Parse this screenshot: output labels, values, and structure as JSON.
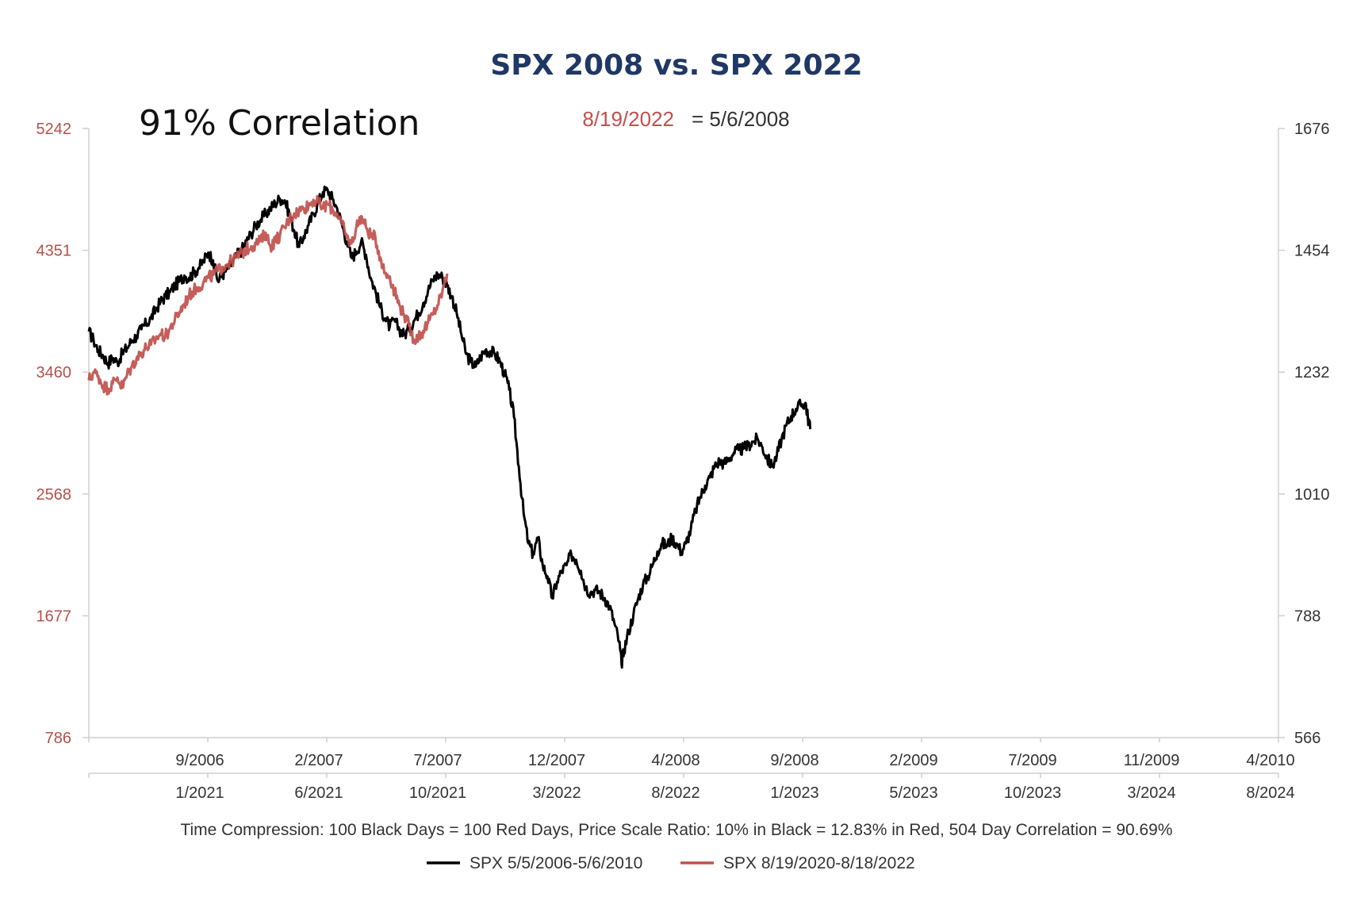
{
  "chart_data": {
    "type": "line",
    "title": "SPX 2008 vs. SPX 2022",
    "annotation_corr": "91% Correlation",
    "annotation_red_date": "8/19/2022",
    "annotation_black_date": "= 5/6/2008",
    "footnote": "Time Compression: 100 Black Days = 100 Red Days,  Price Scale Ratio: 10% in Black = 12.83% in Red, 504 Day Correlation = 90.69%",
    "left_axis": {
      "ticks": [
        "5242",
        "4351",
        "3460",
        "2568",
        "1677",
        "786"
      ],
      "ylim": [
        786,
        5242
      ],
      "color": "#b5504a"
    },
    "right_axis": {
      "ticks": [
        "1676",
        "1454",
        "1232",
        "1010",
        "788",
        "566"
      ],
      "ylim": [
        566,
        1676
      ]
    },
    "x_black": {
      "ticks": [
        "9/2006",
        "2/2007",
        "7/2007",
        "12/2007",
        "4/2008",
        "9/2008",
        "2/2009",
        "7/2009",
        "11/2009",
        "4/2010"
      ],
      "range": [
        "5/5/2006",
        "5/6/2010"
      ]
    },
    "x_red": {
      "ticks": [
        "1/2021",
        "6/2021",
        "10/2021",
        "3/2022",
        "8/2022",
        "1/2023",
        "5/2023",
        "10/2023",
        "3/2024",
        "8/2024"
      ],
      "tick_colors": [
        "#c0504d",
        "#c0504d",
        "#c0504d",
        "#c0504d",
        "#c0504d",
        "#333333",
        "#333333",
        "#333333",
        "#333333",
        "#333333"
      ]
    },
    "series": [
      {
        "name": "SPX 5/5/2006-5/6/2010",
        "color": "#000000",
        "axis": "right",
        "points": [
          [
            0.0,
            1306
          ],
          [
            0.01,
            1290
          ],
          [
            0.02,
            1272
          ],
          [
            0.03,
            1262
          ],
          [
            0.04,
            1248
          ],
          [
            0.05,
            1258
          ],
          [
            0.06,
            1250
          ],
          [
            0.07,
            1266
          ],
          [
            0.08,
            1276
          ],
          [
            0.09,
            1290
          ],
          [
            0.1,
            1298
          ],
          [
            0.11,
            1310
          ],
          [
            0.12,
            1320
          ],
          [
            0.13,
            1330
          ],
          [
            0.14,
            1346
          ],
          [
            0.15,
            1360
          ],
          [
            0.16,
            1370
          ],
          [
            0.17,
            1378
          ],
          [
            0.18,
            1390
          ],
          [
            0.19,
            1398
          ],
          [
            0.2,
            1408
          ],
          [
            0.21,
            1404
          ],
          [
            0.22,
            1414
          ],
          [
            0.23,
            1422
          ],
          [
            0.24,
            1434
          ],
          [
            0.25,
            1450
          ],
          [
            0.26,
            1436
          ],
          [
            0.27,
            1398
          ],
          [
            0.28,
            1410
          ],
          [
            0.29,
            1420
          ],
          [
            0.3,
            1430
          ],
          [
            0.31,
            1445
          ],
          [
            0.32,
            1455
          ],
          [
            0.33,
            1470
          ],
          [
            0.34,
            1485
          ],
          [
            0.35,
            1500
          ],
          [
            0.36,
            1510
          ],
          [
            0.37,
            1520
          ],
          [
            0.38,
            1530
          ],
          [
            0.39,
            1540
          ],
          [
            0.4,
            1548
          ],
          [
            0.41,
            1545
          ],
          [
            0.42,
            1520
          ],
          [
            0.43,
            1490
          ],
          [
            0.44,
            1460
          ],
          [
            0.45,
            1480
          ],
          [
            0.46,
            1500
          ],
          [
            0.47,
            1520
          ],
          [
            0.48,
            1540
          ],
          [
            0.49,
            1560
          ],
          [
            0.5,
            1564
          ],
          [
            0.51,
            1548
          ],
          [
            0.52,
            1530
          ],
          [
            0.53,
            1500
          ],
          [
            0.54,
            1470
          ],
          [
            0.55,
            1440
          ],
          [
            0.56,
            1452
          ],
          [
            0.57,
            1470
          ],
          [
            0.58,
            1446
          ],
          [
            0.59,
            1404
          ],
          [
            0.6,
            1380
          ],
          [
            0.61,
            1350
          ],
          [
            0.62,
            1330
          ],
          [
            0.63,
            1315
          ],
          [
            0.64,
            1326
          ],
          [
            0.65,
            1310
          ],
          [
            0.66,
            1300
          ],
          [
            0.67,
            1310
          ],
          [
            0.68,
            1325
          ],
          [
            0.69,
            1340
          ],
          [
            0.7,
            1358
          ],
          [
            0.71,
            1380
          ],
          [
            0.72,
            1400
          ],
          [
            0.73,
            1410
          ],
          [
            0.74,
            1405
          ],
          [
            0.75,
            1390
          ],
          [
            0.76,
            1370
          ],
          [
            0.77,
            1340
          ],
          [
            0.78,
            1300
          ],
          [
            0.79,
            1265
          ],
          [
            0.8,
            1250
          ],
          [
            0.81,
            1242
          ],
          [
            0.82,
            1260
          ],
          [
            0.83,
            1272
          ],
          [
            0.84,
            1270
          ],
          [
            0.85,
            1265
          ],
          [
            0.86,
            1252
          ],
          [
            0.87,
            1230
          ],
          [
            0.88,
            1200
          ],
          [
            0.89,
            1150
          ],
          [
            0.9,
            1060
          ],
          [
            0.91,
            975
          ],
          [
            0.92,
            920
          ],
          [
            0.93,
            900
          ],
          [
            0.94,
            930
          ],
          [
            0.95,
            880
          ],
          [
            0.96,
            860
          ],
          [
            0.97,
            820
          ],
          [
            0.98,
            850
          ],
          [
            0.99,
            870
          ],
          [
            1.0,
            880
          ],
          [
            1.01,
            900
          ],
          [
            1.02,
            890
          ],
          [
            1.03,
            870
          ],
          [
            1.04,
            840
          ],
          [
            1.05,
            830
          ],
          [
            1.06,
            835
          ],
          [
            1.07,
            830
          ],
          [
            1.08,
            820
          ],
          [
            1.09,
            805
          ],
          [
            1.1,
            775
          ],
          [
            1.11,
            740
          ],
          [
            1.115,
            700
          ],
          [
            1.12,
            725
          ],
          [
            1.13,
            760
          ],
          [
            1.14,
            790
          ],
          [
            1.15,
            820
          ],
          [
            1.16,
            845
          ],
          [
            1.17,
            860
          ],
          [
            1.18,
            880
          ],
          [
            1.19,
            905
          ],
          [
            1.2,
            920
          ],
          [
            1.21,
            915
          ],
          [
            1.22,
            930
          ],
          [
            1.23,
            920
          ],
          [
            1.24,
            905
          ],
          [
            1.25,
            920
          ],
          [
            1.26,
            945
          ],
          [
            1.27,
            980
          ],
          [
            1.28,
            1005
          ],
          [
            1.29,
            1025
          ],
          [
            1.3,
            1040
          ],
          [
            1.31,
            1060
          ],
          [
            1.32,
            1070
          ],
          [
            1.33,
            1065
          ],
          [
            1.34,
            1075
          ],
          [
            1.35,
            1085
          ],
          [
            1.36,
            1090
          ],
          [
            1.37,
            1092
          ],
          [
            1.38,
            1098
          ],
          [
            1.39,
            1105
          ],
          [
            1.4,
            1110
          ],
          [
            1.41,
            1095
          ],
          [
            1.42,
            1075
          ],
          [
            1.43,
            1060
          ],
          [
            1.44,
            1080
          ],
          [
            1.45,
            1110
          ],
          [
            1.46,
            1135
          ],
          [
            1.47,
            1152
          ],
          [
            1.48,
            1165
          ],
          [
            1.49,
            1172
          ],
          [
            1.5,
            1176
          ],
          [
            1.505,
            1150
          ],
          [
            1.51,
            1128
          ]
        ]
      },
      {
        "name": "SPX 8/19/2020-8/18/2022",
        "color": "#c0504d",
        "axis": "left",
        "points": [
          [
            0.0,
            3400
          ],
          [
            0.01,
            3460
          ],
          [
            0.02,
            3430
          ],
          [
            0.03,
            3360
          ],
          [
            0.04,
            3340
          ],
          [
            0.05,
            3375
          ],
          [
            0.06,
            3420
          ],
          [
            0.07,
            3345
          ],
          [
            0.08,
            3440
          ],
          [
            0.09,
            3500
          ],
          [
            0.1,
            3560
          ],
          [
            0.11,
            3600
          ],
          [
            0.12,
            3640
          ],
          [
            0.13,
            3660
          ],
          [
            0.14,
            3700
          ],
          [
            0.15,
            3740
          ],
          [
            0.16,
            3720
          ],
          [
            0.17,
            3780
          ],
          [
            0.18,
            3840
          ],
          [
            0.19,
            3900
          ],
          [
            0.2,
            3960
          ],
          [
            0.21,
            4020
          ],
          [
            0.22,
            4060
          ],
          [
            0.23,
            4080
          ],
          [
            0.24,
            4120
          ],
          [
            0.25,
            4150
          ],
          [
            0.26,
            4170
          ],
          [
            0.27,
            4200
          ],
          [
            0.28,
            4230
          ],
          [
            0.29,
            4250
          ],
          [
            0.3,
            4275
          ],
          [
            0.31,
            4300
          ],
          [
            0.32,
            4330
          ],
          [
            0.33,
            4360
          ],
          [
            0.34,
            4380
          ],
          [
            0.35,
            4400
          ],
          [
            0.36,
            4420
          ],
          [
            0.37,
            4480
          ],
          [
            0.38,
            4380
          ],
          [
            0.39,
            4420
          ],
          [
            0.4,
            4460
          ],
          [
            0.41,
            4520
          ],
          [
            0.42,
            4580
          ],
          [
            0.43,
            4620
          ],
          [
            0.44,
            4640
          ],
          [
            0.45,
            4660
          ],
          [
            0.46,
            4680
          ],
          [
            0.47,
            4720
          ],
          [
            0.48,
            4700
          ],
          [
            0.49,
            4660
          ],
          [
            0.5,
            4690
          ],
          [
            0.51,
            4650
          ],
          [
            0.52,
            4620
          ],
          [
            0.53,
            4540
          ],
          [
            0.54,
            4440
          ],
          [
            0.55,
            4400
          ],
          [
            0.56,
            4520
          ],
          [
            0.57,
            4600
          ],
          [
            0.58,
            4520
          ],
          [
            0.59,
            4460
          ],
          [
            0.6,
            4440
          ],
          [
            0.61,
            4300
          ],
          [
            0.62,
            4180
          ],
          [
            0.63,
            4160
          ],
          [
            0.64,
            4050
          ],
          [
            0.65,
            3950
          ],
          [
            0.66,
            3880
          ],
          [
            0.67,
            3800
          ],
          [
            0.68,
            3700
          ],
          [
            0.69,
            3720
          ],
          [
            0.7,
            3760
          ],
          [
            0.71,
            3820
          ],
          [
            0.72,
            3880
          ],
          [
            0.73,
            3950
          ],
          [
            0.74,
            4050
          ],
          [
            0.75,
            4180
          ]
        ]
      }
    ]
  }
}
